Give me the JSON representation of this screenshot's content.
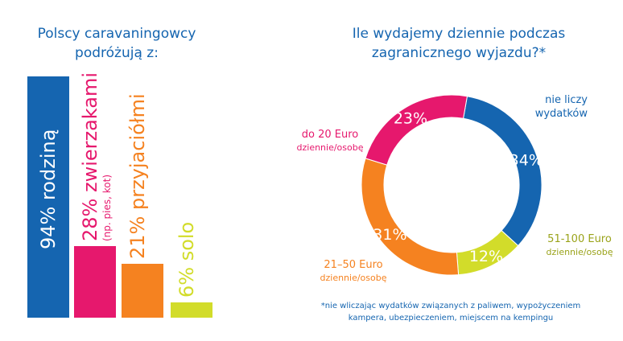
{
  "left_chart": {
    "title": "Polscy caravaningowcy\npodróżują z:",
    "chart_data": {
      "type": "bar",
      "categories": [
        "rodziną",
        "zwierzakami",
        "przyjaciółmi",
        "solo"
      ],
      "values": [
        94,
        28,
        21,
        6
      ],
      "unit": "%",
      "bar_labels": [
        "94% rodziną",
        "28% zwierzakami",
        "21% przyjaciółmi",
        "6% solo"
      ],
      "bar_sublabels": [
        "",
        "(np. pies, kot)",
        "",
        ""
      ],
      "colors": [
        "#1565b0",
        "#e6186d",
        "#f58220",
        "#d2dc2a"
      ],
      "ylim": [
        0,
        94
      ]
    }
  },
  "right_chart": {
    "title": "Ile wydajemy dziennie podczas\nzagranicznego wyjazdu?*",
    "chart_data": {
      "type": "pie",
      "categories": [
        "nie liczy wydatków",
        "51-100 Euro",
        "21–50 Euro",
        "do 20 Euro"
      ],
      "values": [
        34,
        12,
        31,
        23
      ],
      "value_labels": [
        "34%",
        "12%",
        "31%",
        "23%"
      ],
      "label_lines": [
        [
          "nie liczy",
          "wydatków"
        ],
        [
          "51-100 Euro",
          "dziennie/osobę"
        ],
        [
          "21–50 Euro",
          "dziennie/osobę"
        ],
        [
          "do 20 Euro",
          "dziennie/osobę"
        ]
      ],
      "colors": [
        "#1565b0",
        "#d2dc2a",
        "#f58220",
        "#e6186d"
      ],
      "donut": true
    },
    "footnote": [
      "*nie wliczając wydatków związanych z paliwem, wypożyczeniem",
      "kampera, ubezpieczeniem, miejscem na kempingu"
    ]
  }
}
